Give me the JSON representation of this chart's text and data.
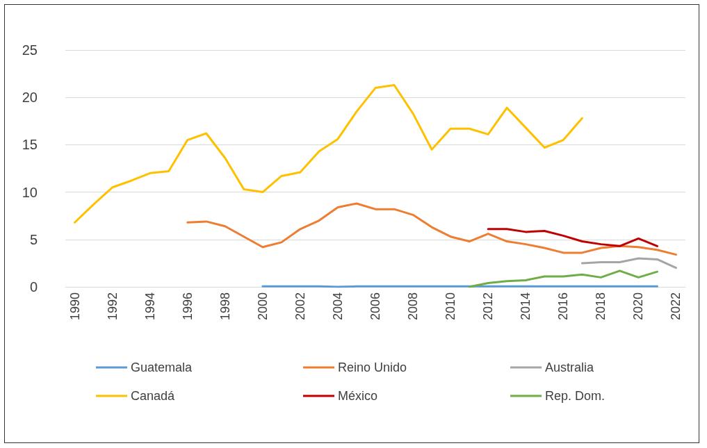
{
  "chart_data": {
    "type": "line",
    "categories": [
      "1990",
      null,
      "1992",
      null,
      "1994",
      null,
      "1996",
      null,
      "1998",
      null,
      "2000",
      null,
      "2002",
      null,
      "2004",
      null,
      "2006",
      null,
      "2008",
      null,
      "2010",
      null,
      "2012",
      null,
      "2014",
      null,
      "2016",
      null,
      "2018",
      null,
      "2020",
      null,
      "2022"
    ],
    "series": [
      {
        "name": "Guatemala",
        "color": "#5b9bd5",
        "values": [
          null,
          null,
          null,
          null,
          null,
          null,
          null,
          null,
          null,
          null,
          0.05,
          0.05,
          0.05,
          0.05,
          0,
          0.05,
          0.05,
          0.05,
          0.05,
          0.05,
          0.05,
          0.05,
          0.05,
          0.05,
          0.05,
          0.05,
          0.05,
          0.05,
          0.05,
          0.05,
          0.05,
          0.05,
          null
        ]
      },
      {
        "name": "Reino Unido",
        "color": "#ed7d31",
        "values": [
          null,
          null,
          null,
          null,
          null,
          null,
          6.8,
          6.9,
          6.4,
          5.3,
          4.2,
          4.7,
          6.1,
          7.0,
          8.4,
          8.8,
          8.2,
          8.2,
          7.6,
          6.3,
          5.3,
          4.8,
          5.6,
          4.8,
          4.5,
          4.1,
          3.6,
          3.6,
          4.1,
          4.3,
          4.2,
          3.9,
          3.4
        ]
      },
      {
        "name": "Australia",
        "color": "#a5a5a5",
        "values": [
          null,
          null,
          null,
          null,
          null,
          null,
          null,
          null,
          null,
          null,
          null,
          null,
          null,
          null,
          null,
          null,
          null,
          null,
          null,
          null,
          null,
          null,
          null,
          null,
          null,
          null,
          null,
          2.5,
          2.6,
          2.6,
          3.0,
          2.9,
          2.0
        ]
      },
      {
        "name": "Canadá",
        "color": "#ffc000",
        "values": [
          6.8,
          8.7,
          10.5,
          11.2,
          12.0,
          12.2,
          15.5,
          16.2,
          13.6,
          10.3,
          10.0,
          11.7,
          12.1,
          14.3,
          15.6,
          18.5,
          21.0,
          21.3,
          18.3,
          14.5,
          16.7,
          16.7,
          16.1,
          18.9,
          16.8,
          14.7,
          15.5,
          17.8,
          null,
          null,
          null,
          null,
          null
        ]
      },
      {
        "name": "México",
        "color": "#c00000",
        "values": [
          null,
          null,
          null,
          null,
          null,
          null,
          null,
          null,
          null,
          null,
          null,
          null,
          null,
          null,
          null,
          null,
          null,
          null,
          null,
          null,
          null,
          null,
          6.1,
          6.1,
          5.8,
          5.9,
          5.4,
          4.8,
          4.5,
          4.3,
          5.1,
          4.3,
          null
        ]
      },
      {
        "name": "Rep. Dom.",
        "color": "#70ad47",
        "values": [
          null,
          null,
          null,
          null,
          null,
          null,
          null,
          null,
          null,
          null,
          null,
          null,
          null,
          null,
          null,
          null,
          null,
          null,
          null,
          null,
          null,
          0,
          0.4,
          0.6,
          0.7,
          1.1,
          1.1,
          1.3,
          1.0,
          1.7,
          1.0,
          1.6,
          null
        ]
      }
    ],
    "ylim": [
      0,
      25
    ],
    "yticks": [
      0,
      5,
      10,
      15,
      20,
      25
    ],
    "grid": "y",
    "legend": "bottom",
    "marker": "none",
    "line_style": "solid"
  }
}
